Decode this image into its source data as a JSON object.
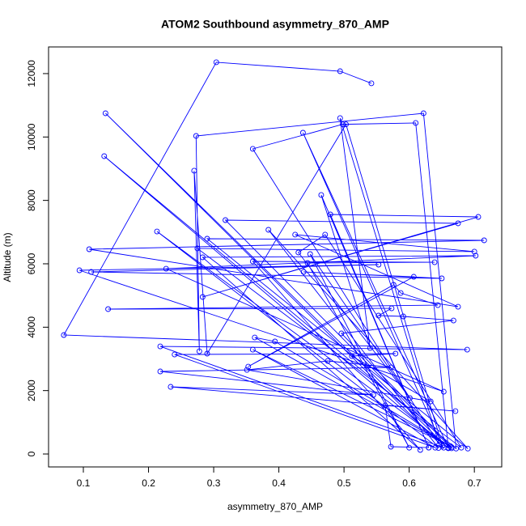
{
  "chart_data": {
    "type": "line",
    "title": "ATOM2 Southbound asymmetry_870_AMP",
    "x_label": "asymmetry_870_AMP",
    "y_label": "Altitude (m)",
    "color": "#0000ff",
    "x": [
      0.542,
      0.494,
      0.304,
      0.07,
      0.689,
      0.218,
      0.653,
      0.134,
      0.66,
      0.132,
      0.672,
      0.622,
      0.273,
      0.278,
      0.27,
      0.29,
      0.503,
      0.651,
      0.437,
      0.66,
      0.61,
      0.498,
      0.36,
      0.646,
      0.494,
      0.54,
      0.465,
      0.63,
      0.479,
      0.706,
      0.283,
      0.675,
      0.318,
      0.665,
      0.213,
      0.645,
      0.384,
      0.69,
      0.29,
      0.715,
      0.109,
      0.675,
      0.425,
      0.7,
      0.275,
      0.68,
      0.471,
      0.43,
      0.601,
      0.448,
      0.6,
      0.444,
      0.639,
      0.36,
      0.617,
      0.283,
      0.702,
      0.227,
      0.653,
      0.094,
      0.553,
      0.112,
      0.65,
      0.438,
      0.607,
      0.353,
      0.576,
      0.587,
      0.644,
      0.138,
      0.573,
      0.553,
      0.591,
      0.668,
      0.496,
      0.665,
      0.363,
      0.394,
      0.663,
      0.36,
      0.64,
      0.24,
      0.579,
      0.512,
      0.633,
      0.351,
      0.475,
      0.572,
      0.218,
      0.545,
      0.234,
      0.671,
      0.563,
      0.572,
      0.63
    ],
    "values": [
      11693,
      12075,
      12357,
      3753,
      3293,
      3395,
      200,
      10748,
      180,
      9395,
      170,
      10748,
      10033,
      3242,
      8936,
      3166,
      10400,
      250,
      10135,
      200,
      10442,
      10400,
      9625,
      300,
      10595,
      3344,
      8170,
      200,
      7557,
      7480,
      4953,
      7276,
      7378,
      180,
      7020,
      190,
      7072,
      170,
      6791,
      6740,
      6459,
      4646,
      6919,
      6383,
      6485,
      200,
      6919,
      6357,
      1762,
      6306,
      200,
      6025,
      6050,
      6076,
      128,
      6204,
      6255,
      5846,
      1966,
      5795,
      5974,
      5744,
      5540,
      5744,
      5591,
      2757,
      5336,
      5080,
      4697,
      4570,
      4595,
      4366,
      4340,
      4212,
      3804,
      220,
      3676,
      3549,
      250,
      3293,
      200,
      3140,
      3166,
      3089,
      1659,
      2655,
      2936,
      2732,
      2604,
      1864,
      2119,
      1353,
      1532,
      230,
      204
    ],
    "xlim": [
      0.0466,
      0.742
    ],
    "ylim": [
      -408,
      12841
    ],
    "xticks": [
      0.1,
      0.2,
      0.3,
      0.4,
      0.5,
      0.6,
      0.7
    ],
    "yticks": [
      0,
      2000,
      4000,
      6000,
      8000,
      10000,
      12000
    ]
  }
}
